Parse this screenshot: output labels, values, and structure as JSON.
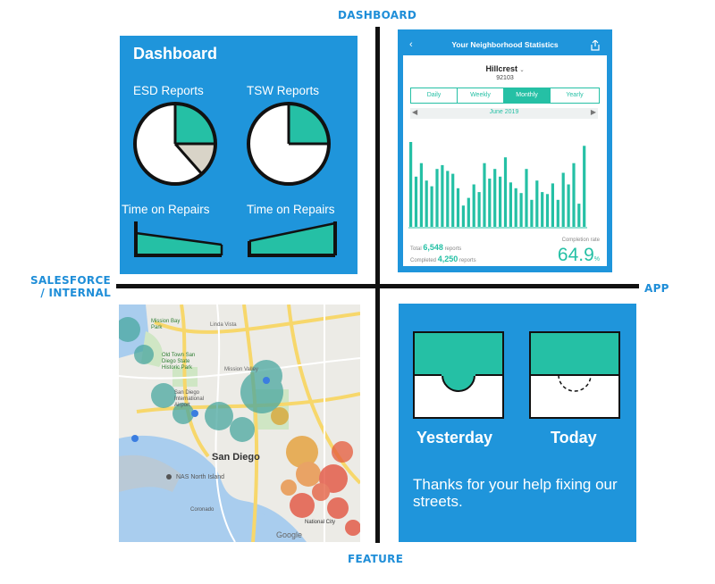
{
  "axes": {
    "top": "DASHBOARD",
    "bottom": "FEATURE",
    "left_line1": "SALESFORCE",
    "left_line2": "/ INTERNAL",
    "right": "APP"
  },
  "dashboard": {
    "title": "Dashboard",
    "esd_label": "ESD Reports",
    "tsw_label": "TSW Reports",
    "repairs_label_1": "Time on Repairs",
    "repairs_label_2": "Time on Repairs",
    "colors": {
      "accent": "#25c0a5",
      "gray": "#d9d4c8",
      "panel": "#1f95db"
    }
  },
  "app": {
    "header_title": "Your Neighborhood Statistics",
    "back_icon": "chevron-left-icon",
    "share_icon": "share-icon",
    "neighborhood": "Hillcrest",
    "zip": "92103",
    "tabs": [
      "Daily",
      "Weekly",
      "Monthly",
      "Yearly"
    ],
    "active_tab": "Monthly",
    "month": "June 2019",
    "total_label": "Total",
    "total_value": "6,548",
    "total_unit": "reports",
    "completed_label": "Completed",
    "completed_value": "4,250",
    "completed_unit": "reports",
    "completion_rate_label": "Completion rate",
    "completion_rate": "64.9",
    "completion_rate_unit": "%",
    "bars": [
      0.88,
      0.52,
      0.66,
      0.48,
      0.42,
      0.6,
      0.64,
      0.58,
      0.55,
      0.4,
      0.22,
      0.3,
      0.44,
      0.36,
      0.66,
      0.5,
      0.6,
      0.52,
      0.72,
      0.46,
      0.4,
      0.35,
      0.6,
      0.28,
      0.48,
      0.36,
      0.34,
      0.45,
      0.28,
      0.56,
      0.44,
      0.66,
      0.24,
      0.84
    ]
  },
  "map": {
    "city_label": "San Diego",
    "places": [
      "Mission Bay Park",
      "Old Town San Diego State Historic Park",
      "San Diego International Airport",
      "NAS North Island",
      "Coronado",
      "National City",
      "Linda Vista",
      "Mission Valley"
    ],
    "attribution": "Google"
  },
  "feature": {
    "yesterday": "Yesterday",
    "today": "Today",
    "thanks": "Thanks for your help fixing our streets."
  }
}
